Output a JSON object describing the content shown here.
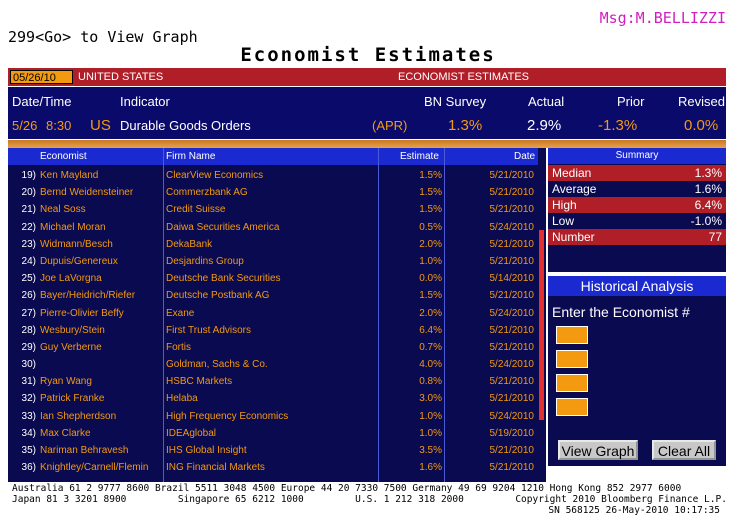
{
  "top": {
    "command": "299<Go> to View Graph",
    "message": "Msg:M.BELLIZZI",
    "title": "Economist Estimates"
  },
  "header_bar": {
    "date": "05/26/10",
    "country": "UNITED STATES",
    "label": "ECONOMIST ESTIMATES"
  },
  "main": {
    "columns": {
      "datetime": "Date/Time",
      "indicator": "Indicator",
      "bn_survey": "BN Survey",
      "actual": "Actual",
      "prior": "Prior",
      "revised": "Revised"
    },
    "row": {
      "date": "5/26",
      "time": "8:30",
      "country": "US",
      "indicator": "Durable Goods Orders",
      "period": "(APR)",
      "bn_survey": "1.3%",
      "actual": "2.9%",
      "prior": "-1.3%",
      "revised": "0.0%"
    }
  },
  "table": {
    "headers": {
      "economist": "Economist",
      "firm": "Firm Name",
      "estimate": "Estimate",
      "date": "Date"
    },
    "rows": [
      {
        "num": "19)",
        "economist": "Ken Mayland",
        "firm": "ClearView Economics",
        "estimate": "1.5%",
        "date": "5/21/2010"
      },
      {
        "num": "20)",
        "economist": "Bernd Weidensteiner",
        "firm": "Commerzbank AG",
        "estimate": "1.5%",
        "date": "5/21/2010"
      },
      {
        "num": "21)",
        "economist": "Neal Soss",
        "firm": "Credit Suisse",
        "estimate": "1.5%",
        "date": "5/21/2010"
      },
      {
        "num": "22)",
        "economist": "Michael Moran",
        "firm": "Daiwa Securities America",
        "estimate": "0.5%",
        "date": "5/24/2010"
      },
      {
        "num": "23)",
        "economist": "Widmann/Besch",
        "firm": "DekaBank",
        "estimate": "2.0%",
        "date": "5/21/2010"
      },
      {
        "num": "24)",
        "economist": "Dupuis/Genereux",
        "firm": "Desjardins Group",
        "estimate": "1.0%",
        "date": "5/21/2010"
      },
      {
        "num": "25)",
        "economist": "Joe LaVorgna",
        "firm": "Deutsche Bank Securities",
        "estimate": "0.0%",
        "date": "5/14/2010"
      },
      {
        "num": "26)",
        "economist": "Bayer/Heidrich/Riefer",
        "firm": "Deutsche Postbank AG",
        "estimate": "1.5%",
        "date": "5/21/2010"
      },
      {
        "num": "27)",
        "economist": "Pierre-Olivier Beffy",
        "firm": "Exane",
        "estimate": "2.0%",
        "date": "5/24/2010"
      },
      {
        "num": "28)",
        "economist": "Wesbury/Stein",
        "firm": "First Trust Advisors",
        "estimate": "6.4%",
        "date": "5/21/2010"
      },
      {
        "num": "29)",
        "economist": "Guy Verberne",
        "firm": "Fortis",
        "estimate": "0.7%",
        "date": "5/21/2010"
      },
      {
        "num": "30)",
        "economist": "",
        "firm": "Goldman, Sachs & Co.",
        "estimate": "4.0%",
        "date": "5/24/2010"
      },
      {
        "num": "31)",
        "economist": "Ryan Wang",
        "firm": "HSBC Markets",
        "estimate": "0.8%",
        "date": "5/21/2010"
      },
      {
        "num": "32)",
        "economist": "Patrick Franke",
        "firm": "Helaba",
        "estimate": "3.0%",
        "date": "5/21/2010"
      },
      {
        "num": "33)",
        "economist": "Ian Shepherdson",
        "firm": "High Frequency Economics",
        "estimate": "1.0%",
        "date": "5/24/2010"
      },
      {
        "num": "34)",
        "economist": "Max Clarke",
        "firm": "IDEAglobal",
        "estimate": "1.0%",
        "date": "5/19/2010"
      },
      {
        "num": "35)",
        "economist": "Nariman Behravesh",
        "firm": "IHS Global Insight",
        "estimate": "3.5%",
        "date": "5/21/2010"
      },
      {
        "num": "36)",
        "economist": "Knightley/Carnell/Flemin",
        "firm": "ING Financial Markets",
        "estimate": "1.6%",
        "date": "5/21/2010"
      }
    ]
  },
  "summary": {
    "title": "Summary",
    "median_label": "Median",
    "median": "1.3%",
    "average_label": "Average",
    "average": "1.6%",
    "high_label": "High",
    "high": "6.4%",
    "low_label": "Low",
    "low": "-1.0%",
    "number_label": "Number",
    "number": "77"
  },
  "historical": {
    "title": "Historical Analysis",
    "prompt": "Enter the Economist #",
    "view_graph_label": "View Graph",
    "clear_all_label": "Clear All"
  },
  "footer": {
    "line1": "Australia 61 2 9777 8600 Brazil 5511 3048 4500 Europe 44 20 7330 7500 Germany 49 69 9204 1210 Hong Kong 852 2977 6000",
    "line2": "Japan 81 3 3201 8900         Singapore 65 6212 1000         U.S. 1 212 318 2000         Copyright 2010 Bloomberg Finance L.P.",
    "line3": "SN 568125 26-May-2010 10:17:35"
  },
  "colors": {
    "panel_bg": "#0a0a6a",
    "accent_orange": "#f39a10",
    "header_red": "#b01e28",
    "header_blue": "#1a2ad0"
  }
}
